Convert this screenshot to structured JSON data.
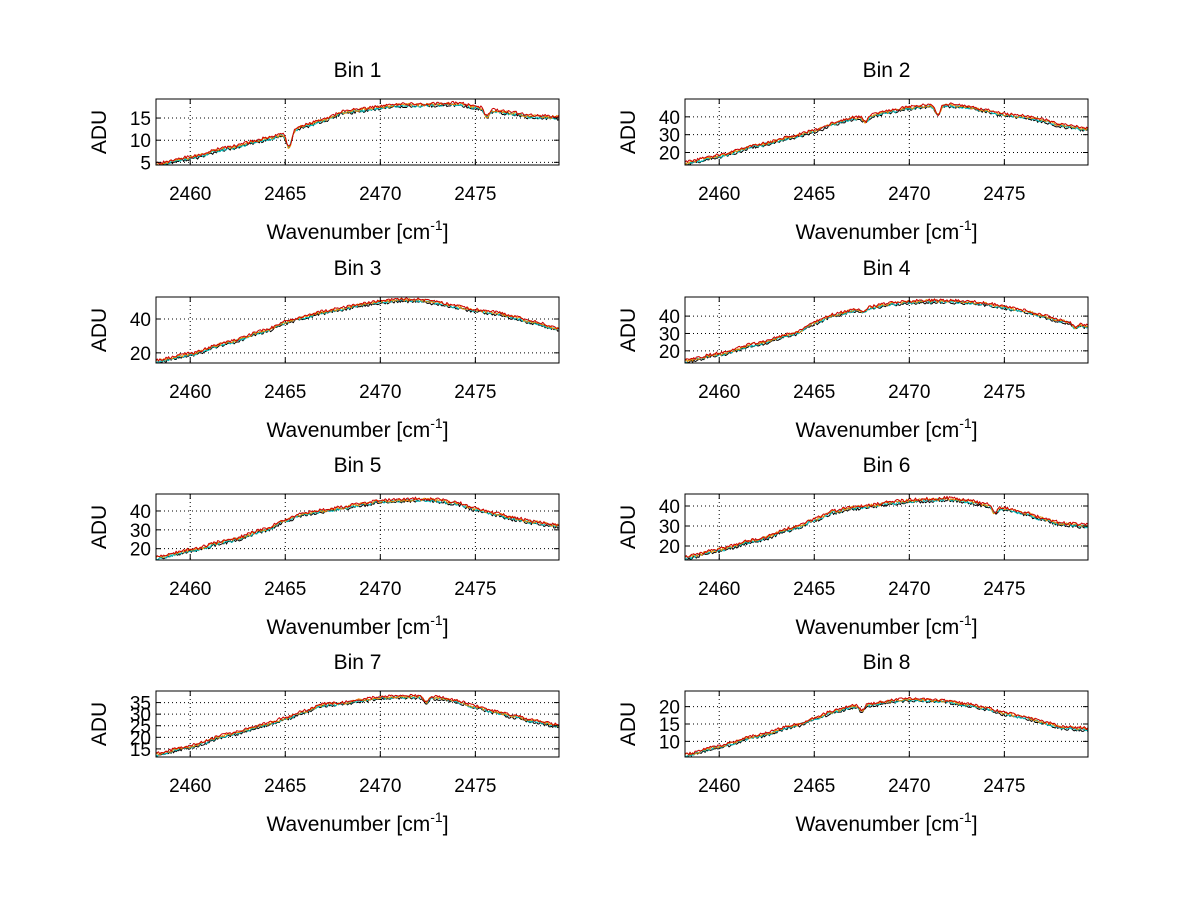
{
  "figure": {
    "background": "#ffffff"
  },
  "chart_data": [
    {
      "type": "line",
      "title": "Bin 1",
      "xlabel": "Wavenumber [cm",
      "xlabel_sup": "-1",
      "xlabel_close": "]",
      "ylabel": "ADU",
      "xlim": [
        2458.2,
        2479.4
      ],
      "ylim": [
        4.4,
        19.3
      ],
      "xticks": [
        2460,
        2465,
        2470,
        2475
      ],
      "yticks": [
        5,
        10,
        15
      ],
      "grid": true,
      "anchors": [
        [
          2458.2,
          4.5
        ],
        [
          2460,
          6
        ],
        [
          2462,
          8.2
        ],
        [
          2464,
          10.2
        ],
        [
          2465,
          11.3
        ],
        [
          2466,
          13.2
        ],
        [
          2467,
          14.5
        ],
        [
          2468,
          16.2
        ],
        [
          2469,
          16.8
        ],
        [
          2470,
          17.4
        ],
        [
          2471,
          17.9
        ],
        [
          2472,
          17.9
        ],
        [
          2473,
          18
        ],
        [
          2474,
          18.2
        ],
        [
          2475,
          17.4
        ],
        [
          2476,
          16.6
        ],
        [
          2477,
          16
        ],
        [
          2478,
          15.3
        ],
        [
          2479.4,
          15.1
        ]
      ],
      "dips": [
        [
          2465.2,
          -3
        ],
        [
          2475.6,
          -1.5
        ]
      ],
      "noise": 0.35,
      "seed": 11,
      "series": [
        {
          "name": "black",
          "color": "#000000"
        },
        {
          "name": "cyan",
          "color": "#00bfbf"
        },
        {
          "name": "orange",
          "color": "#e88a00"
        },
        {
          "name": "red",
          "color": "#cc0000"
        }
      ]
    },
    {
      "type": "line",
      "title": "Bin 2",
      "xlabel": "Wavenumber [cm",
      "xlabel_sup": "-1",
      "xlabel_close": "]",
      "ylabel": "ADU",
      "xlim": [
        2458.2,
        2479.4
      ],
      "ylim": [
        13,
        50
      ],
      "xticks": [
        2460,
        2465,
        2470,
        2475
      ],
      "yticks": [
        20,
        30,
        40
      ],
      "grid": true,
      "anchors": [
        [
          2458.2,
          14
        ],
        [
          2460,
          18
        ],
        [
          2462,
          24
        ],
        [
          2464,
          29
        ],
        [
          2465,
          32
        ],
        [
          2466,
          36
        ],
        [
          2467,
          39
        ],
        [
          2468,
          40.5
        ],
        [
          2469,
          43
        ],
        [
          2470,
          45
        ],
        [
          2471,
          46
        ],
        [
          2472,
          46.5
        ],
        [
          2473,
          45.5
        ],
        [
          2474,
          43.5
        ],
        [
          2475,
          41
        ],
        [
          2476,
          40
        ],
        [
          2477,
          38
        ],
        [
          2478,
          35
        ],
        [
          2479.4,
          33
        ]
      ],
      "dips": [
        [
          2467.7,
          -3
        ],
        [
          2471.5,
          -5
        ]
      ],
      "noise": 0.8,
      "seed": 22,
      "series": [
        {
          "name": "black",
          "color": "#000000"
        },
        {
          "name": "cyan",
          "color": "#00bfbf"
        },
        {
          "name": "orange",
          "color": "#e88a00"
        },
        {
          "name": "red",
          "color": "#cc0000"
        }
      ]
    },
    {
      "type": "line",
      "title": "Bin 3",
      "xlabel": "Wavenumber [cm",
      "xlabel_sup": "-1",
      "xlabel_close": "]",
      "ylabel": "ADU",
      "xlim": [
        2458.2,
        2479.4
      ],
      "ylim": [
        14,
        53
      ],
      "xticks": [
        2460,
        2465,
        2470,
        2475
      ],
      "yticks": [
        20,
        40
      ],
      "grid": true,
      "anchors": [
        [
          2458.2,
          15
        ],
        [
          2460,
          19
        ],
        [
          2462,
          26
        ],
        [
          2464,
          33
        ],
        [
          2465,
          38
        ],
        [
          2466,
          41
        ],
        [
          2467,
          44
        ],
        [
          2468,
          46
        ],
        [
          2469,
          48.5
        ],
        [
          2470,
          50
        ],
        [
          2471,
          51
        ],
        [
          2472,
          51
        ],
        [
          2473,
          49.5
        ],
        [
          2474,
          47
        ],
        [
          2475,
          45
        ],
        [
          2476,
          43.5
        ],
        [
          2477,
          41
        ],
        [
          2478,
          38
        ],
        [
          2479.4,
          34
        ]
      ],
      "dips": [],
      "noise": 0.8,
      "seed": 33,
      "series": [
        {
          "name": "black",
          "color": "#000000"
        },
        {
          "name": "cyan",
          "color": "#00bfbf"
        },
        {
          "name": "orange",
          "color": "#e88a00"
        },
        {
          "name": "red",
          "color": "#cc0000"
        }
      ]
    },
    {
      "type": "line",
      "title": "Bin 4",
      "xlabel": "Wavenumber [cm",
      "xlabel_sup": "-1",
      "xlabel_close": "]",
      "ylabel": "ADU",
      "xlim": [
        2458.2,
        2479.4
      ],
      "ylim": [
        13,
        51
      ],
      "xticks": [
        2460,
        2465,
        2470,
        2475
      ],
      "yticks": [
        20,
        30,
        40
      ],
      "grid": true,
      "anchors": [
        [
          2458.2,
          14
        ],
        [
          2460,
          18
        ],
        [
          2462,
          24
        ],
        [
          2464,
          30
        ],
        [
          2465,
          36
        ],
        [
          2466,
          40.5
        ],
        [
          2467,
          43
        ],
        [
          2468,
          45
        ],
        [
          2469,
          47
        ],
        [
          2470,
          48
        ],
        [
          2471,
          48.5
        ],
        [
          2472,
          48.5
        ],
        [
          2473,
          48
        ],
        [
          2474,
          47
        ],
        [
          2475,
          45
        ],
        [
          2476,
          43
        ],
        [
          2477,
          40
        ],
        [
          2478,
          37
        ],
        [
          2479.4,
          34
        ]
      ],
      "dips": [
        [
          2467.6,
          -2
        ],
        [
          2478.7,
          -2
        ]
      ],
      "noise": 0.8,
      "seed": 44,
      "series": [
        {
          "name": "black",
          "color": "#000000"
        },
        {
          "name": "cyan",
          "color": "#00bfbf"
        },
        {
          "name": "orange",
          "color": "#e88a00"
        },
        {
          "name": "red",
          "color": "#cc0000"
        }
      ]
    },
    {
      "type": "line",
      "title": "Bin 5",
      "xlabel": "Wavenumber [cm",
      "xlabel_sup": "-1",
      "xlabel_close": "]",
      "ylabel": "ADU",
      "xlim": [
        2458.2,
        2479.4
      ],
      "ylim": [
        14,
        49
      ],
      "xticks": [
        2460,
        2465,
        2470,
        2475
      ],
      "yticks": [
        20,
        30,
        40
      ],
      "grid": true,
      "anchors": [
        [
          2458.2,
          15
        ],
        [
          2460,
          19
        ],
        [
          2462,
          24
        ],
        [
          2464,
          30
        ],
        [
          2465,
          35
        ],
        [
          2466,
          38.5
        ],
        [
          2467,
          40
        ],
        [
          2468,
          41.5
        ],
        [
          2469,
          43.5
        ],
        [
          2470,
          45
        ],
        [
          2471,
          45.5
        ],
        [
          2472,
          46
        ],
        [
          2473,
          45.5
        ],
        [
          2474,
          44
        ],
        [
          2475,
          41
        ],
        [
          2476,
          38.5
        ],
        [
          2477,
          36
        ],
        [
          2478,
          34
        ],
        [
          2479.4,
          32
        ]
      ],
      "dips": [],
      "noise": 0.8,
      "seed": 55,
      "series": [
        {
          "name": "black",
          "color": "#000000"
        },
        {
          "name": "cyan",
          "color": "#00bfbf"
        },
        {
          "name": "orange",
          "color": "#e88a00"
        },
        {
          "name": "red",
          "color": "#cc0000"
        }
      ]
    },
    {
      "type": "line",
      "title": "Bin 6",
      "xlabel": "Wavenumber [cm",
      "xlabel_sup": "-1",
      "xlabel_close": "]",
      "ylabel": "ADU",
      "xlim": [
        2458.2,
        2479.4
      ],
      "ylim": [
        13,
        46
      ],
      "xticks": [
        2460,
        2465,
        2470,
        2475
      ],
      "yticks": [
        20,
        30,
        40
      ],
      "grid": true,
      "anchors": [
        [
          2458.2,
          14
        ],
        [
          2460,
          18
        ],
        [
          2462,
          23
        ],
        [
          2464,
          29
        ],
        [
          2465,
          33
        ],
        [
          2466,
          37
        ],
        [
          2467,
          39
        ],
        [
          2468,
          40
        ],
        [
          2469,
          41.5
        ],
        [
          2470,
          42.5
        ],
        [
          2471,
          43
        ],
        [
          2472,
          43.5
        ],
        [
          2473,
          42.5
        ],
        [
          2474,
          40.5
        ],
        [
          2475,
          38.5
        ],
        [
          2476,
          36.5
        ],
        [
          2477,
          33.5
        ],
        [
          2478,
          31
        ],
        [
          2479.4,
          30
        ]
      ],
      "dips": [
        [
          2474.5,
          -3
        ]
      ],
      "noise": 0.8,
      "seed": 66,
      "series": [
        {
          "name": "black",
          "color": "#000000"
        },
        {
          "name": "cyan",
          "color": "#00bfbf"
        },
        {
          "name": "orange",
          "color": "#e88a00"
        },
        {
          "name": "red",
          "color": "#cc0000"
        }
      ]
    },
    {
      "type": "line",
      "title": "Bin 7",
      "xlabel": "Wavenumber [cm",
      "xlabel_sup": "-1",
      "xlabel_close": "]",
      "ylabel": "ADU",
      "xlim": [
        2458.2,
        2479.4
      ],
      "ylim": [
        11.5,
        40
      ],
      "xticks": [
        2460,
        2465,
        2470,
        2475
      ],
      "yticks": [
        15,
        20,
        25,
        30,
        35
      ],
      "grid": true,
      "anchors": [
        [
          2458.2,
          12.5
        ],
        [
          2460,
          16
        ],
        [
          2462,
          21
        ],
        [
          2464,
          25.5
        ],
        [
          2465,
          28
        ],
        [
          2466,
          31
        ],
        [
          2467,
          34
        ],
        [
          2468,
          34.5
        ],
        [
          2469,
          36
        ],
        [
          2470,
          37
        ],
        [
          2471,
          37.5
        ],
        [
          2472,
          37.5
        ],
        [
          2473,
          37
        ],
        [
          2474,
          35.5
        ],
        [
          2475,
          33
        ],
        [
          2476,
          31
        ],
        [
          2477,
          29
        ],
        [
          2478,
          27
        ],
        [
          2479.4,
          25
        ]
      ],
      "dips": [
        [
          2472.4,
          -2
        ]
      ],
      "noise": 0.6,
      "seed": 77,
      "series": [
        {
          "name": "black",
          "color": "#000000"
        },
        {
          "name": "cyan",
          "color": "#00bfbf"
        },
        {
          "name": "orange",
          "color": "#e88a00"
        },
        {
          "name": "red",
          "color": "#cc0000"
        }
      ]
    },
    {
      "type": "line",
      "title": "Bin 8",
      "xlabel": "Wavenumber [cm",
      "xlabel_sup": "-1",
      "xlabel_close": "]",
      "ylabel": "ADU",
      "xlim": [
        2458.2,
        2479.4
      ],
      "ylim": [
        5.5,
        24.5
      ],
      "xticks": [
        2460,
        2465,
        2470,
        2475
      ],
      "yticks": [
        10,
        15,
        20
      ],
      "grid": true,
      "anchors": [
        [
          2458.2,
          6
        ],
        [
          2460,
          8.5
        ],
        [
          2462,
          11.5
        ],
        [
          2464,
          14.5
        ],
        [
          2465,
          16.5
        ],
        [
          2466,
          18.5
        ],
        [
          2467,
          20
        ],
        [
          2468,
          20.5
        ],
        [
          2469,
          21.5
        ],
        [
          2470,
          22
        ],
        [
          2471,
          21.8
        ],
        [
          2472,
          21.5
        ],
        [
          2473,
          20.5
        ],
        [
          2474,
          19.5
        ],
        [
          2475,
          18
        ],
        [
          2476,
          17
        ],
        [
          2477,
          15.5
        ],
        [
          2478,
          14
        ],
        [
          2479.4,
          13.5
        ]
      ],
      "dips": [
        [
          2467.5,
          -1.5
        ]
      ],
      "noise": 0.4,
      "seed": 88,
      "series": [
        {
          "name": "black",
          "color": "#000000"
        },
        {
          "name": "cyan",
          "color": "#00bfbf"
        },
        {
          "name": "orange",
          "color": "#e88a00"
        },
        {
          "name": "red",
          "color": "#cc0000"
        }
      ]
    }
  ]
}
